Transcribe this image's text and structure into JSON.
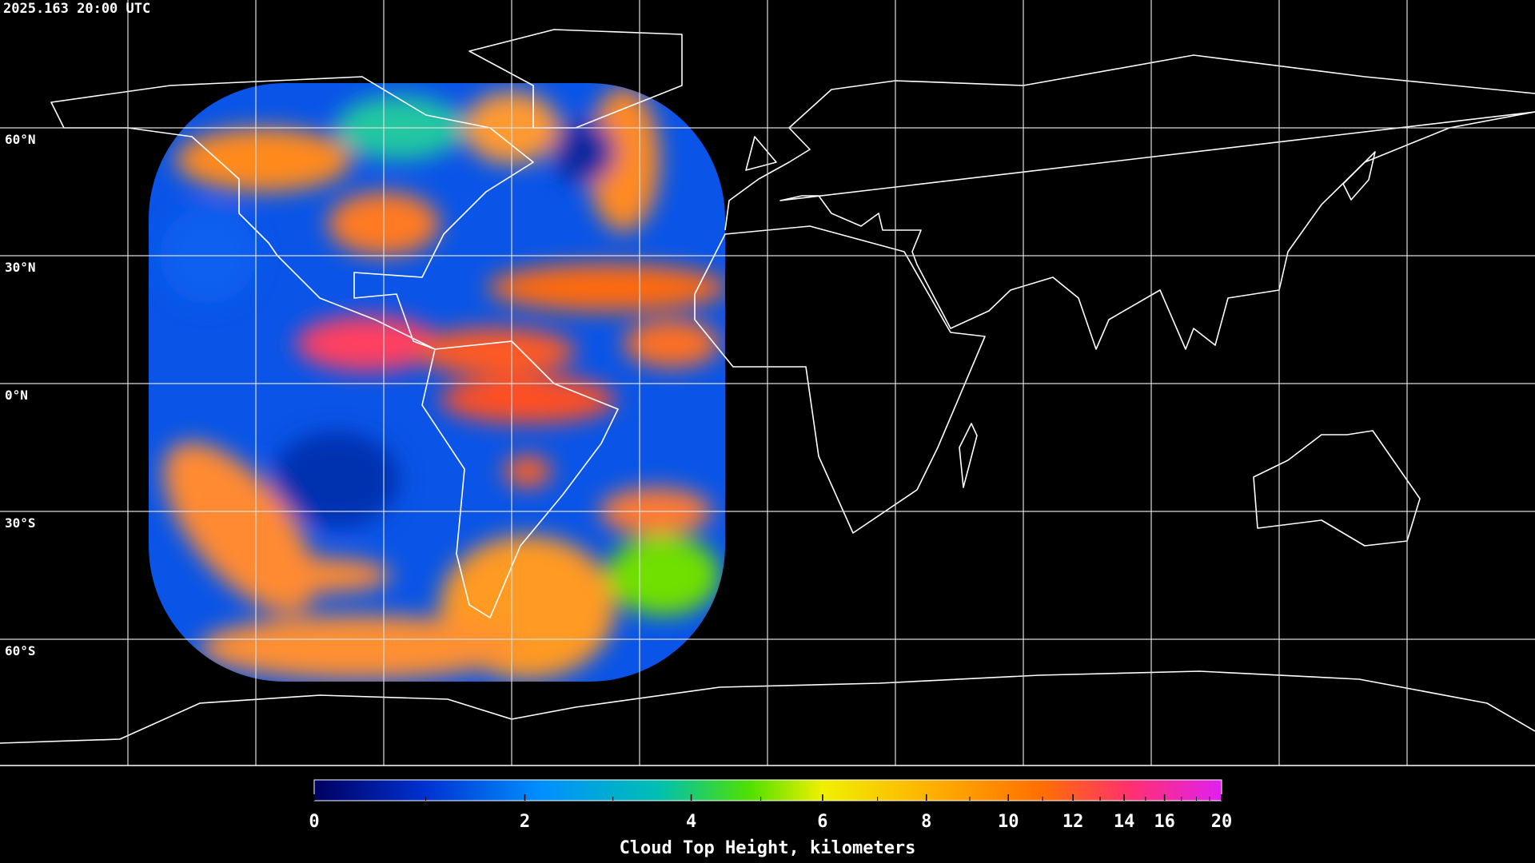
{
  "map": {
    "timestamp": "2025.163 20:00 UTC",
    "lat_lines": [
      {
        "value": 60,
        "label": "60°N"
      },
      {
        "value": 30,
        "label": "30°N"
      },
      {
        "value": 0,
        "label": "0°N"
      },
      {
        "value": -30,
        "label": "30°S"
      },
      {
        "value": -60,
        "label": "60°S"
      }
    ],
    "lon_lines": [
      -150,
      -120,
      -90,
      -60,
      -30,
      0,
      30,
      60,
      90,
      120,
      150
    ]
  },
  "colorbar": {
    "label": "Cloud Top Height, kilometers",
    "range": [
      0,
      20
    ],
    "ticks": [
      0,
      2,
      4,
      6,
      8,
      10,
      12,
      14,
      16,
      20
    ],
    "minor_ticks": [
      1,
      3,
      5,
      7,
      9,
      11,
      13,
      15,
      17,
      18,
      19
    ]
  }
}
